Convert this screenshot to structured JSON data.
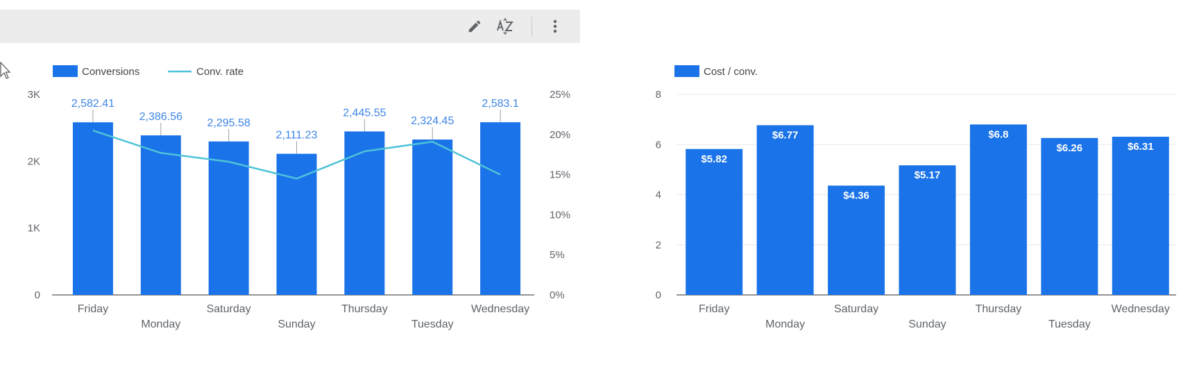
{
  "toolbar": {
    "icons": [
      "pencil-icon",
      "sort-az-icon",
      "more-vert-icon"
    ]
  },
  "colors": {
    "bar": "#1a73e8",
    "line": "#4ec3d9",
    "grid": "#e8e8e8",
    "axis_text": "#5f6368"
  },
  "chart_data": [
    {
      "type": "bar",
      "categories": [
        "Friday",
        "Monday",
        "Saturday",
        "Sunday",
        "Thursday",
        "Tuesday",
        "Wednesday"
      ],
      "series": [
        {
          "name": "Conversions",
          "type": "bar",
          "axis": "left",
          "values": [
            2582.41,
            2386.56,
            2295.58,
            2111.23,
            2445.55,
            2324.45,
            2583.1
          ],
          "data_labels": [
            "2,582.41",
            "2,386.56",
            "2,295.58",
            "2,111.23",
            "2,445.55",
            "2,324.45",
            "2,583.1"
          ]
        },
        {
          "name": "Conv. rate",
          "type": "line",
          "axis": "right",
          "values": [
            20.5,
            17.7,
            16.6,
            14.5,
            17.9,
            19.1,
            15.0
          ]
        }
      ],
      "y_left": {
        "ylim": [
          0,
          3000
        ],
        "ticks": [
          0,
          1000,
          2000,
          3000
        ],
        "tick_labels": [
          "0",
          "1K",
          "2K",
          "3K"
        ]
      },
      "y_right": {
        "ylim": [
          0,
          25
        ],
        "ticks": [
          0,
          5,
          10,
          15,
          20,
          25
        ],
        "tick_labels": [
          "0%",
          "5%",
          "10%",
          "15%",
          "20%",
          "25%"
        ]
      },
      "grid": false,
      "legend_position": "top-left"
    },
    {
      "type": "bar",
      "categories": [
        "Friday",
        "Monday",
        "Saturday",
        "Sunday",
        "Thursday",
        "Tuesday",
        "Wednesday"
      ],
      "series": [
        {
          "name": "Cost / conv.",
          "values": [
            5.82,
            6.77,
            4.36,
            5.17,
            6.8,
            6.26,
            6.31
          ],
          "data_labels": [
            "$5.82",
            "$6.77",
            "$4.36",
            "$5.17",
            "$6.8",
            "$6.26",
            "$6.31"
          ]
        }
      ],
      "y_left": {
        "ylim": [
          0,
          8
        ],
        "ticks": [
          0,
          2,
          4,
          6,
          8
        ],
        "tick_labels": [
          "0",
          "2",
          "4",
          "6",
          "8"
        ]
      },
      "grid": true,
      "legend_position": "top-left"
    }
  ]
}
